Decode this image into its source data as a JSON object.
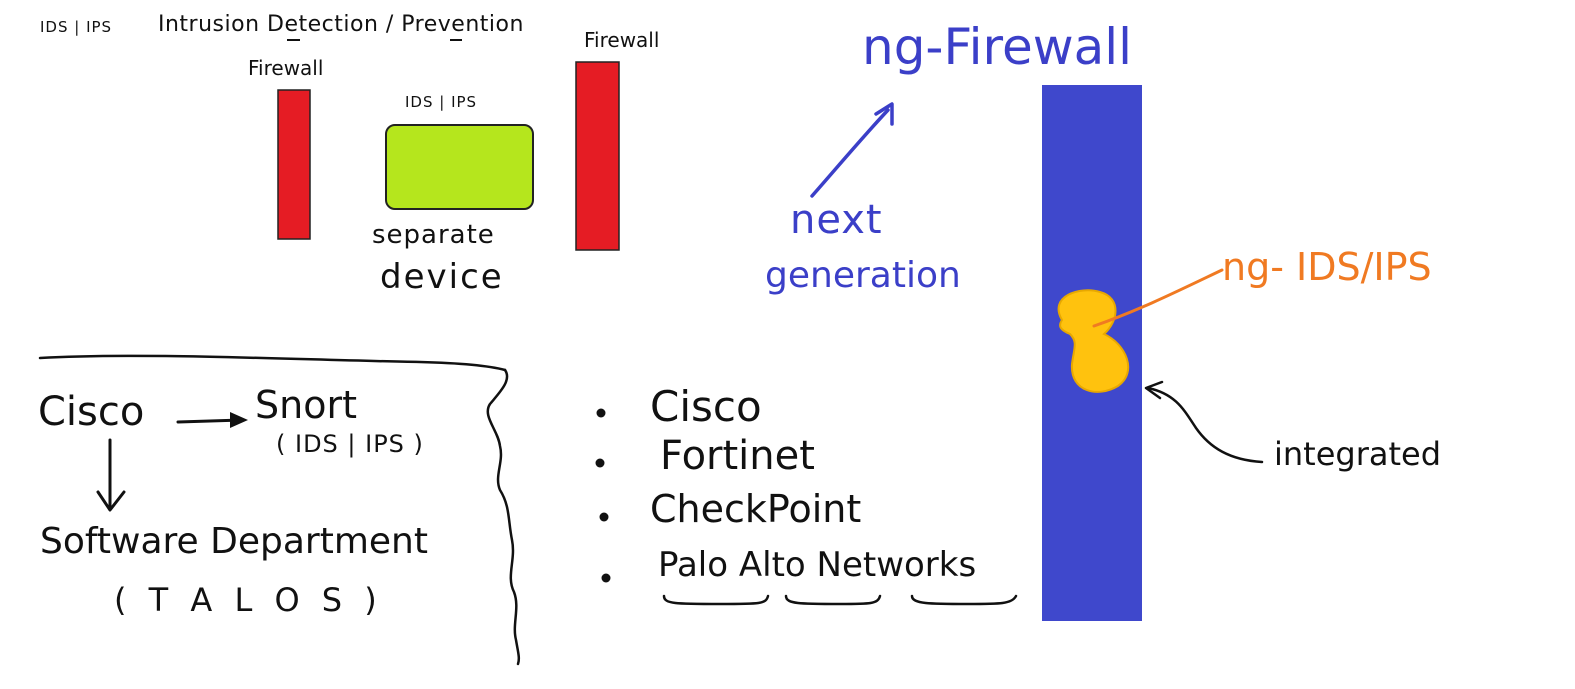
{
  "header": {
    "abbr": "IDS | IPS",
    "title": "Intrusion Detection / Prevention"
  },
  "left_diagram": {
    "firewall_left_label": "Firewall",
    "firewall_right_label": "Firewall",
    "device_label": "IDS | IPS",
    "separate_line1": "separate",
    "separate_line2": "device",
    "colors": {
      "firewall": "#e51c24",
      "device": "#b5e61d"
    }
  },
  "right_diagram": {
    "title": "ng-Firewall",
    "next_line1": "next",
    "next_line2": "generation",
    "ng_ids": "ng- IDS/IPS",
    "integrated": "integrated",
    "colors": {
      "ngfw_bar": "#3f48cc",
      "blob": "#ffc20e",
      "annotation_blue": "#3b3fc8",
      "annotation_orange": "#f07a22"
    }
  },
  "cisco_box": {
    "cisco": "Cisco",
    "snort": "Snort",
    "snort_sub": "( IDS | IPS )",
    "dept": "Software Department",
    "talos": "( T A L O S )"
  },
  "vendors": {
    "items": [
      "Cisco",
      "Fortinet",
      "CheckPoint",
      "Palo Alto Networks"
    ]
  }
}
